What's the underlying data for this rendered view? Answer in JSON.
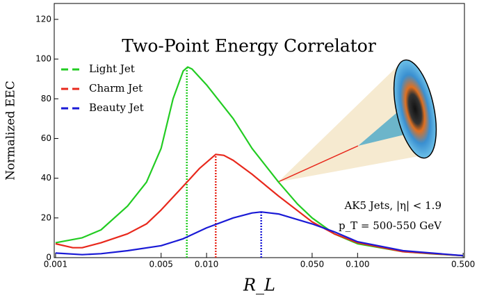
{
  "chart_data": {
    "type": "line",
    "title": "Two-Point Energy Correlator",
    "x_label": "R_L",
    "y_label": "Normalized EEC",
    "annotations": [
      "AK5 Jets, |η| < 1.9",
      "p_T = 500-550 GeV"
    ],
    "xscale": "log",
    "xlim": [
      0.00098,
      0.51
    ],
    "ylim": [
      0,
      128
    ],
    "xticks": [
      {
        "value": 0.001,
        "label": "0.001"
      },
      {
        "value": 0.005,
        "label": "0.005"
      },
      {
        "value": 0.01,
        "label": "0.010"
      },
      {
        "value": 0.05,
        "label": "0.050"
      },
      {
        "value": 0.1,
        "label": "0.100"
      },
      {
        "value": 0.5,
        "label": "0.500"
      }
    ],
    "yticks": [
      0,
      20,
      40,
      60,
      80,
      100,
      120
    ],
    "legend": "upper left",
    "series": [
      {
        "name": "Light Jet",
        "color": "#22cc22",
        "x": [
          0.001,
          0.0015,
          0.002,
          0.003,
          0.004,
          0.005,
          0.006,
          0.007,
          0.0075,
          0.008,
          0.01,
          0.015,
          0.02,
          0.03,
          0.04,
          0.05,
          0.07,
          0.1,
          0.2,
          0.3,
          0.5
        ],
        "values": [
          7.5,
          10,
          14,
          26,
          38,
          55,
          80,
          94,
          96,
          95,
          87,
          70,
          55,
          38,
          27,
          20,
          12,
          7,
          3,
          2,
          1
        ],
        "peak_x": 0.0074,
        "peak_y": 96
      },
      {
        "name": "Charm Jet",
        "color": "#e8281c",
        "x": [
          0.001,
          0.0013,
          0.0015,
          0.002,
          0.003,
          0.004,
          0.005,
          0.007,
          0.009,
          0.0115,
          0.013,
          0.015,
          0.02,
          0.03,
          0.05,
          0.07,
          0.1,
          0.2,
          0.5
        ],
        "values": [
          7,
          5,
          5,
          7.5,
          12,
          17,
          24,
          36,
          45,
          52,
          51.5,
          49,
          42,
          31,
          18,
          12,
          7.5,
          3,
          1
        ],
        "peak_x": 0.0115,
        "peak_y": 52
      },
      {
        "name": "Beauty Jet",
        "color": "#1a1ad6",
        "x": [
          0.001,
          0.0015,
          0.002,
          0.003,
          0.005,
          0.007,
          0.01,
          0.015,
          0.02,
          0.023,
          0.03,
          0.05,
          0.07,
          0.1,
          0.2,
          0.5
        ],
        "values": [
          2.3,
          1.5,
          2,
          3.5,
          6,
          9.5,
          15,
          20,
          22.5,
          23,
          22,
          17,
          13,
          8,
          3.5,
          1
        ],
        "peak_x": 0.023,
        "peak_y": 23
      }
    ]
  }
}
